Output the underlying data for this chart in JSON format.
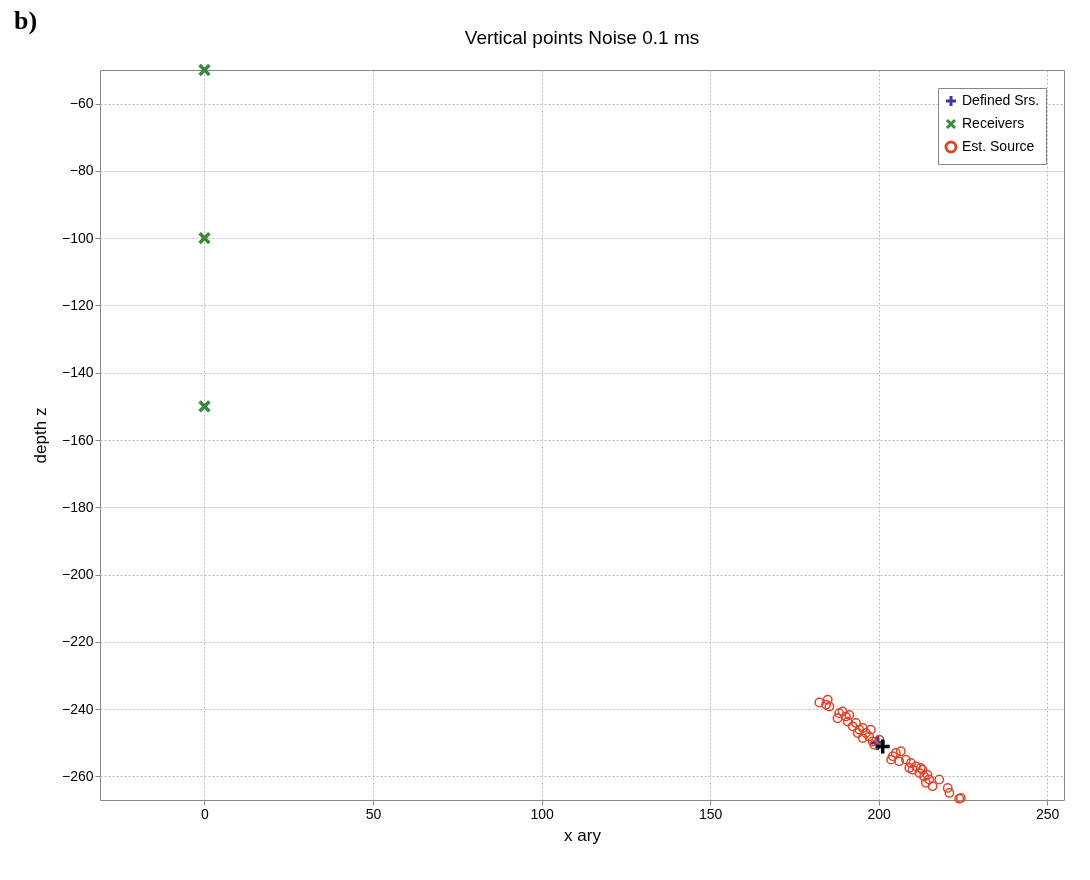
{
  "chart_data": {
    "type": "scatter",
    "title": "Vertical points  Noise 0.1 ms",
    "xlabel": "x ary",
    "ylabel": "depth z",
    "annotations": [
      "b)"
    ],
    "xlim": [
      -31,
      255
    ],
    "ylim": [
      -267,
      -50
    ],
    "xticks": [
      0,
      50,
      100,
      150,
      200,
      250
    ],
    "yticks": [
      -260,
      -240,
      -220,
      -200,
      -180,
      -160,
      -140,
      -120,
      -100,
      -80,
      -60
    ],
    "grid": true,
    "legend": "top right",
    "series": [
      {
        "name": "Defined Srs.",
        "color": "#3a3a9a",
        "marker": "plus",
        "x": [
          199.7
        ],
        "values": [
          -250
        ]
      },
      {
        "name": "Receivers",
        "color": "#3a8a3a",
        "marker": "cross",
        "x": [
          0,
          0,
          0
        ],
        "values": [
          -50,
          -100,
          -150
        ]
      },
      {
        "name": "Est. Source",
        "color": "#d9472b",
        "marker": "circle",
        "x": [
          182.4,
          184.9,
          184.4,
          185.4,
          188.3,
          189.3,
          187.8,
          190.3,
          190.8,
          191.3,
          192.3,
          193.3,
          194.3,
          193.8,
          195.3,
          196.2,
          195.3,
          197.2,
          197.7,
          198.2,
          198.7,
          200.2,
          204.2,
          205.1,
          206.6,
          206.1,
          208.1,
          209.6,
          210.1,
          211.1,
          212.1,
          212.5,
          213.5,
          214.0,
          215.0,
          216.0,
          218.0,
          220.5,
          221.0,
          223.9,
          224.4,
          203.7,
          209.1,
          213.0,
          214.5
        ],
        "values": [
          -238.0,
          -237.2,
          -238.7,
          -239.2,
          -241.2,
          -240.7,
          -242.7,
          -242.2,
          -243.7,
          -241.7,
          -245.1,
          -244.1,
          -246.1,
          -247.1,
          -245.6,
          -247.1,
          -248.6,
          -248.1,
          -246.1,
          -249.6,
          -250.6,
          -249.1,
          -254.0,
          -253.0,
          -252.5,
          -255.5,
          -255.0,
          -256.0,
          -258.0,
          -257.0,
          -259.0,
          -257.5,
          -260.0,
          -261.9,
          -260.9,
          -262.9,
          -260.9,
          -263.4,
          -264.9,
          -266.6,
          -266.4,
          -255.0,
          -257.5,
          -258.0,
          -259.5
        ]
      },
      {
        "color": "#000000",
        "marker": "plus",
        "x": [
          201.2
        ],
        "values": [
          -251.1
        ]
      }
    ]
  }
}
